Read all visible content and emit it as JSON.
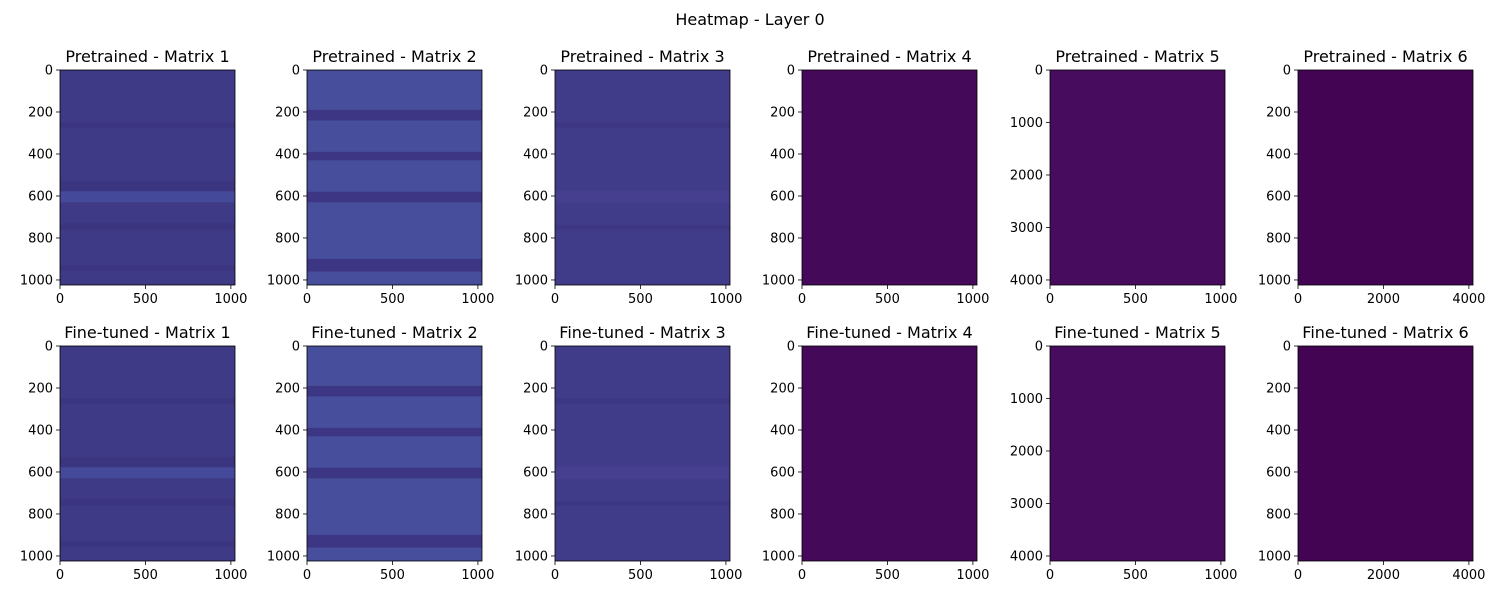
{
  "figure": {
    "title": "Heatmap - Layer 0"
  },
  "chart_data": [
    {
      "type": "heatmap",
      "row": "Pretrained",
      "title": "Pretrained - Matrix 1",
      "xlim": [
        0,
        1024
      ],
      "ylim": [
        1024,
        0
      ],
      "xticks": [
        0,
        500,
        1000
      ],
      "yticks": [
        0,
        200,
        400,
        600,
        800,
        1000
      ],
      "base_color": "#3f3a86",
      "bands": [
        {
          "y0": 250,
          "y1": 275,
          "color": "#3b3580"
        },
        {
          "y0": 530,
          "y1": 575,
          "color": "#3b3580"
        },
        {
          "y0": 578,
          "y1": 630,
          "color": "#45499a"
        },
        {
          "y0": 730,
          "y1": 760,
          "color": "#3b3580"
        },
        {
          "y0": 930,
          "y1": 955,
          "color": "#3b3580"
        }
      ]
    },
    {
      "type": "heatmap",
      "row": "Pretrained",
      "title": "Pretrained - Matrix 2",
      "xlim": [
        0,
        1024
      ],
      "ylim": [
        1024,
        0
      ],
      "xticks": [
        0,
        500,
        1000
      ],
      "yticks": [
        0,
        200,
        400,
        600,
        800,
        1000
      ],
      "base_color": "#474e9b",
      "bands": [
        {
          "y0": 190,
          "y1": 240,
          "color": "#3d3684"
        },
        {
          "y0": 390,
          "y1": 430,
          "color": "#3d3684"
        },
        {
          "y0": 580,
          "y1": 630,
          "color": "#3d3684"
        },
        {
          "y0": 900,
          "y1": 960,
          "color": "#3d3684"
        }
      ]
    },
    {
      "type": "heatmap",
      "row": "Pretrained",
      "title": "Pretrained - Matrix 3",
      "xlim": [
        0,
        1024
      ],
      "ylim": [
        1024,
        0
      ],
      "xticks": [
        0,
        500,
        1000
      ],
      "yticks": [
        0,
        200,
        400,
        600,
        800,
        1000
      ],
      "base_color": "#413c89",
      "bands": [
        {
          "y0": 250,
          "y1": 275,
          "color": "#3c3683"
        },
        {
          "y0": 575,
          "y1": 635,
          "color": "#463f90"
        },
        {
          "y0": 740,
          "y1": 760,
          "color": "#3c3683"
        }
      ]
    },
    {
      "type": "heatmap",
      "row": "Pretrained",
      "title": "Pretrained - Matrix 4",
      "xlim": [
        0,
        1024
      ],
      "ylim": [
        1024,
        0
      ],
      "xticks": [
        0,
        500,
        1000
      ],
      "yticks": [
        0,
        200,
        400,
        600,
        800,
        1000
      ],
      "base_color": "#45095a",
      "bands": []
    },
    {
      "type": "heatmap",
      "row": "Pretrained",
      "title": "Pretrained - Matrix 5",
      "xlim": [
        0,
        1024
      ],
      "ylim": [
        4096,
        0
      ],
      "xticks": [
        0,
        500,
        1000
      ],
      "yticks": [
        0,
        1000,
        2000,
        3000,
        4000
      ],
      "base_color": "#470c5e",
      "bands": []
    },
    {
      "type": "heatmap",
      "row": "Pretrained",
      "title": "Pretrained - Matrix 6",
      "xlim": [
        0,
        4096
      ],
      "ylim": [
        1024,
        0
      ],
      "xticks": [
        0,
        2000,
        4000
      ],
      "yticks": [
        0,
        200,
        400,
        600,
        800,
        1000
      ],
      "base_color": "#440454",
      "bands": []
    },
    {
      "type": "heatmap",
      "row": "Fine-tuned",
      "title": "Fine-tuned - Matrix 1",
      "xlim": [
        0,
        1024
      ],
      "ylim": [
        1024,
        0
      ],
      "xticks": [
        0,
        500,
        1000
      ],
      "yticks": [
        0,
        200,
        400,
        600,
        800,
        1000
      ],
      "base_color": "#3f3a86",
      "bands": [
        {
          "y0": 250,
          "y1": 275,
          "color": "#3b3580"
        },
        {
          "y0": 530,
          "y1": 575,
          "color": "#3b3580"
        },
        {
          "y0": 578,
          "y1": 630,
          "color": "#45499a"
        },
        {
          "y0": 730,
          "y1": 760,
          "color": "#3b3580"
        },
        {
          "y0": 930,
          "y1": 955,
          "color": "#3b3580"
        }
      ]
    },
    {
      "type": "heatmap",
      "row": "Fine-tuned",
      "title": "Fine-tuned - Matrix 2",
      "xlim": [
        0,
        1024
      ],
      "ylim": [
        1024,
        0
      ],
      "xticks": [
        0,
        500,
        1000
      ],
      "yticks": [
        0,
        200,
        400,
        600,
        800,
        1000
      ],
      "base_color": "#474e9b",
      "bands": [
        {
          "y0": 190,
          "y1": 240,
          "color": "#3d3684"
        },
        {
          "y0": 390,
          "y1": 430,
          "color": "#3d3684"
        },
        {
          "y0": 580,
          "y1": 630,
          "color": "#3d3684"
        },
        {
          "y0": 900,
          "y1": 960,
          "color": "#3d3684"
        }
      ]
    },
    {
      "type": "heatmap",
      "row": "Fine-tuned",
      "title": "Fine-tuned - Matrix 3",
      "xlim": [
        0,
        1024
      ],
      "ylim": [
        1024,
        0
      ],
      "xticks": [
        0,
        500,
        1000
      ],
      "yticks": [
        0,
        200,
        400,
        600,
        800,
        1000
      ],
      "base_color": "#413c89",
      "bands": [
        {
          "y0": 250,
          "y1": 275,
          "color": "#3c3683"
        },
        {
          "y0": 575,
          "y1": 635,
          "color": "#463f90"
        },
        {
          "y0": 740,
          "y1": 760,
          "color": "#3c3683"
        }
      ]
    },
    {
      "type": "heatmap",
      "row": "Fine-tuned",
      "title": "Fine-tuned - Matrix 4",
      "xlim": [
        0,
        1024
      ],
      "ylim": [
        1024,
        0
      ],
      "xticks": [
        0,
        500,
        1000
      ],
      "yticks": [
        0,
        200,
        400,
        600,
        800,
        1000
      ],
      "base_color": "#45095a",
      "bands": []
    },
    {
      "type": "heatmap",
      "row": "Fine-tuned",
      "title": "Fine-tuned - Matrix 5",
      "xlim": [
        0,
        1024
      ],
      "ylim": [
        4096,
        0
      ],
      "xticks": [
        0,
        500,
        1000
      ],
      "yticks": [
        0,
        1000,
        2000,
        3000,
        4000
      ],
      "base_color": "#470c5e",
      "bands": []
    },
    {
      "type": "heatmap",
      "row": "Fine-tuned",
      "title": "Fine-tuned - Matrix 6",
      "xlim": [
        0,
        4096
      ],
      "ylim": [
        1024,
        0
      ],
      "xticks": [
        0,
        2000,
        4000
      ],
      "yticks": [
        0,
        200,
        400,
        600,
        800,
        1000
      ],
      "base_color": "#440454",
      "bands": []
    }
  ]
}
